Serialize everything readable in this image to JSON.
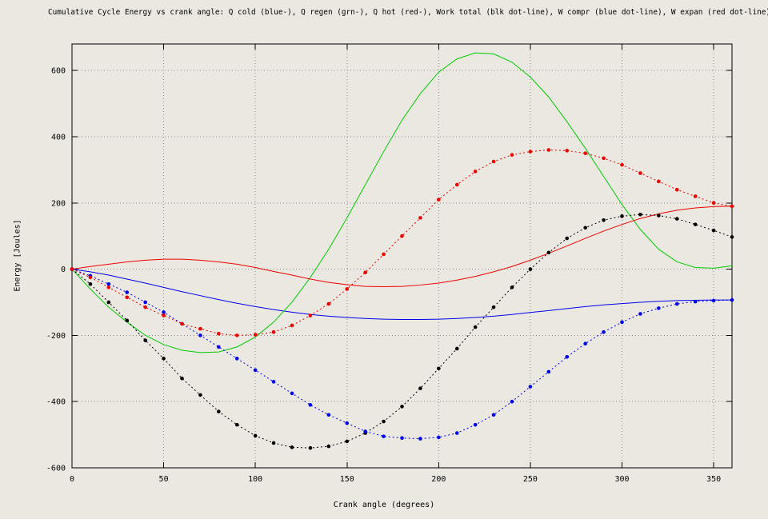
{
  "chart_data": {
    "type": "line",
    "title": "Cumulative Cycle Energy vs crank angle: Q cold (blue-), Q regen (grn-), Q hot (red-), Work total (blk dot-line), W compr (blue dot-line), W expan (red dot-line)",
    "xlabel": "Crank angle (degrees)",
    "ylabel": "Energy [Joules]",
    "xlim": [
      0,
      360
    ],
    "ylim": [
      -600,
      680
    ],
    "xticks": [
      0,
      50,
      100,
      150,
      200,
      250,
      300,
      350
    ],
    "yticks": [
      -600,
      -400,
      -200,
      0,
      200,
      400,
      600
    ],
    "grid": true,
    "legend_position": "in-title",
    "background_color": "#ebe8e1",
    "grid_color": "#8a8a8a",
    "x": [
      0,
      10,
      20,
      30,
      40,
      50,
      60,
      70,
      80,
      90,
      100,
      110,
      120,
      130,
      140,
      150,
      160,
      170,
      180,
      190,
      200,
      210,
      220,
      230,
      240,
      250,
      260,
      270,
      280,
      290,
      300,
      310,
      320,
      330,
      340,
      350,
      360
    ],
    "series": [
      {
        "name": "Q cold",
        "color": "#0000ee",
        "style": "solid",
        "markers": false,
        "values": [
          0,
          -8,
          -18,
          -30,
          -42,
          -55,
          -68,
          -80,
          -92,
          -103,
          -113,
          -122,
          -130,
          -137,
          -142,
          -146,
          -149,
          -151,
          -152,
          -152,
          -151,
          -149,
          -146,
          -142,
          -137,
          -131,
          -125,
          -119,
          -113,
          -108,
          -104,
          -100,
          -97,
          -95,
          -94,
          -93,
          -93
        ]
      },
      {
        "name": "Q regen",
        "color": "#00cc00",
        "style": "solid",
        "markers": false,
        "values": [
          0,
          -60,
          -115,
          -160,
          -200,
          -228,
          -245,
          -252,
          -250,
          -235,
          -205,
          -160,
          -100,
          -25,
          60,
          155,
          255,
          355,
          450,
          530,
          595,
          635,
          653,
          650,
          625,
          580,
          520,
          445,
          365,
          280,
          195,
          120,
          60,
          22,
          5,
          3,
          10
        ]
      },
      {
        "name": "Q hot",
        "color": "#ee0000",
        "style": "solid",
        "markers": false,
        "values": [
          0,
          8,
          15,
          22,
          27,
          30,
          30,
          27,
          22,
          15,
          5,
          -7,
          -18,
          -30,
          -40,
          -47,
          -52,
          -53,
          -52,
          -48,
          -42,
          -33,
          -22,
          -8,
          8,
          27,
          48,
          70,
          93,
          115,
          135,
          153,
          167,
          178,
          185,
          189,
          190
        ]
      },
      {
        "name": "Work total",
        "color": "#000000",
        "style": "dotted",
        "markers": true,
        "values": [
          0,
          -45,
          -100,
          -155,
          -215,
          -270,
          -330,
          -380,
          -430,
          -470,
          -503,
          -525,
          -538,
          -540,
          -535,
          -520,
          -495,
          -460,
          -415,
          -360,
          -300,
          -240,
          -175,
          -115,
          -55,
          0,
          50,
          93,
          125,
          148,
          160,
          165,
          162,
          152,
          135,
          117,
          97
        ]
      },
      {
        "name": "W compr",
        "color": "#0000ee",
        "style": "dotted",
        "markers": true,
        "values": [
          0,
          -20,
          -45,
          -70,
          -100,
          -130,
          -165,
          -200,
          -235,
          -270,
          -305,
          -340,
          -375,
          -410,
          -440,
          -465,
          -490,
          -505,
          -510,
          -512,
          -508,
          -495,
          -470,
          -440,
          -400,
          -355,
          -310,
          -265,
          -225,
          -190,
          -160,
          -135,
          -118,
          -105,
          -98,
          -95,
          -93
        ]
      },
      {
        "name": "W expan",
        "color": "#ee0000",
        "style": "dotted",
        "markers": true,
        "values": [
          0,
          -25,
          -55,
          -85,
          -115,
          -140,
          -165,
          -180,
          -195,
          -200,
          -198,
          -190,
          -170,
          -140,
          -105,
          -60,
          -10,
          45,
          100,
          155,
          210,
          255,
          295,
          325,
          345,
          355,
          360,
          358,
          350,
          335,
          315,
          290,
          265,
          240,
          220,
          200,
          190
        ]
      }
    ]
  }
}
